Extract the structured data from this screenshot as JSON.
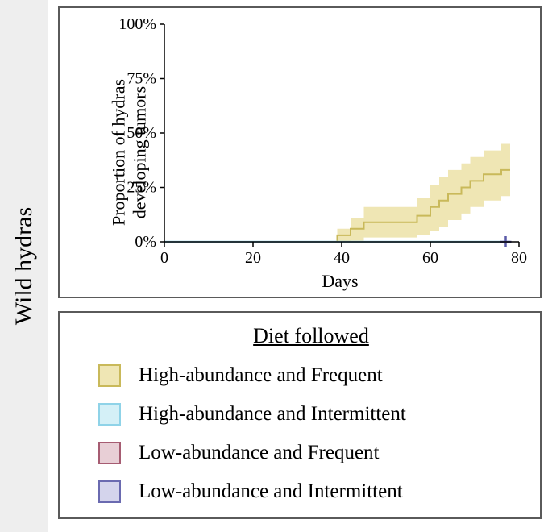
{
  "panel_label": "Wild hydras",
  "sidebar_bg": "#eeeeee",
  "border_color": "#5a5a5a",
  "chart": {
    "type": "step-line-with-band",
    "xlabel": "Days",
    "ylabel_line1": "Proportion of hydras",
    "ylabel_line2": "developing tumors",
    "background_color": "#ffffff",
    "xlim": [
      0,
      80
    ],
    "ylim": [
      0,
      100
    ],
    "xtick_step": 20,
    "ytick_step": 25,
    "xtick_labels": [
      "0",
      "20",
      "40",
      "60",
      "80"
    ],
    "ytick_labels": [
      "0%",
      "25%",
      "50%",
      "75%",
      "100%"
    ],
    "label_fontsize": 22,
    "tick_fontsize": 20,
    "axis_color": "#000000",
    "series": {
      "high_freq": {
        "color_line": "#c9b95a",
        "color_band": "#efe6b4",
        "line_width": 2,
        "step_x": [
          0,
          37,
          39,
          42,
          45,
          55,
          57,
          60,
          62,
          64,
          67,
          69,
          72,
          76,
          78
        ],
        "step_y": [
          0,
          0,
          3,
          6,
          9,
          9,
          12,
          16,
          19,
          22,
          25,
          28,
          31,
          33,
          33
        ],
        "band_lower": [
          0,
          0,
          0,
          0.5,
          2,
          2,
          3,
          5,
          7,
          10,
          13,
          16,
          19,
          21,
          21
        ],
        "band_upper": [
          0,
          0,
          6,
          11,
          16,
          16,
          20,
          26,
          30,
          33,
          36,
          39,
          42,
          45,
          45
        ]
      },
      "high_int": {
        "color_line": "#8fd3e8",
        "line_width": 2.5,
        "step_x": [
          0,
          78
        ],
        "step_y": [
          0,
          0
        ]
      },
      "low_int_marker": {
        "color": "#5a5aa8",
        "x": 77,
        "y": 0,
        "symbol": "+",
        "size": 7
      }
    }
  },
  "legend": {
    "title": "Diet followed",
    "title_fontsize": 26,
    "item_fontsize": 25,
    "items": [
      {
        "label": "High-abundance and Frequent",
        "fill": "#efe6b4",
        "stroke": "#c9b95a"
      },
      {
        "label": "High-abundance and Intermittent",
        "fill": "#d4f0f7",
        "stroke": "#8fd3e8"
      },
      {
        "label": "Low-abundance and Frequent",
        "fill": "#e8cfd6",
        "stroke": "#a65c72"
      },
      {
        "label": "Low-abundance and Intermittent",
        "fill": "#d4d4ec",
        "stroke": "#6a6ab0"
      }
    ]
  }
}
